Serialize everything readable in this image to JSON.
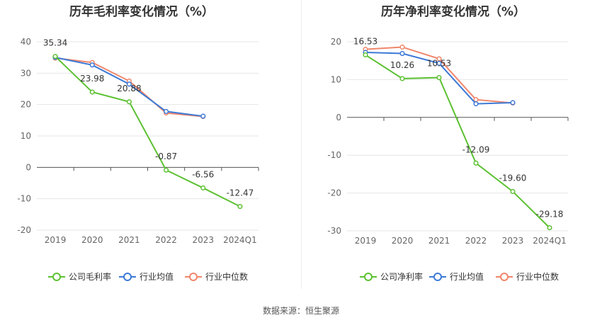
{
  "chart_data": [
    {
      "type": "line",
      "title": "历年毛利率变化情况（%）",
      "categories": [
        "2019",
        "2020",
        "2021",
        "2022",
        "2023",
        "2024Q1"
      ],
      "ylim": [
        -20,
        40
      ],
      "yticks": [
        -20,
        -10,
        0,
        10,
        20,
        30,
        40
      ],
      "grid": true,
      "legend_position": "bottom",
      "series": [
        {
          "name": "公司毛利率",
          "color": "#5cc132",
          "values": [
            35.34,
            23.98,
            20.88,
            -0.87,
            -6.56,
            -12.47
          ],
          "labels": [
            "35.34",
            "23.98",
            "20.88",
            "-0.87",
            "-6.56",
            "-12.47"
          ]
        },
        {
          "name": "行业均值",
          "color": "#3d7ad6",
          "values": [
            35.0,
            32.6,
            26.5,
            17.8,
            16.3,
            null
          ]
        },
        {
          "name": "行业中位数",
          "color": "#f0866b",
          "values": [
            34.8,
            33.4,
            27.5,
            17.3,
            16.2,
            null
          ]
        }
      ]
    },
    {
      "type": "line",
      "title": "历年净利率变化情况（%）",
      "categories": [
        "2019",
        "2020",
        "2021",
        "2022",
        "2023",
        "2024Q1"
      ],
      "ylim": [
        -30,
        20
      ],
      "yticks": [
        -30,
        -20,
        -10,
        0,
        10,
        20
      ],
      "grid": true,
      "legend_position": "bottom",
      "series": [
        {
          "name": "公司净利率",
          "color": "#5cc132",
          "values": [
            16.53,
            10.26,
            10.53,
            -12.09,
            -19.6,
            -29.18
          ],
          "labels": [
            "16.53",
            "10.26",
            "10.53",
            "-12.09",
            "-19.60",
            "-29.18"
          ]
        },
        {
          "name": "行业均值",
          "color": "#3d7ad6",
          "values": [
            17.2,
            16.9,
            14.3,
            3.6,
            3.9,
            null
          ]
        },
        {
          "name": "行业中位数",
          "color": "#f0866b",
          "values": [
            18.0,
            18.6,
            15.5,
            4.7,
            3.8,
            null
          ]
        }
      ]
    }
  ],
  "footer": {
    "source": "数据来源：恒生聚源"
  }
}
